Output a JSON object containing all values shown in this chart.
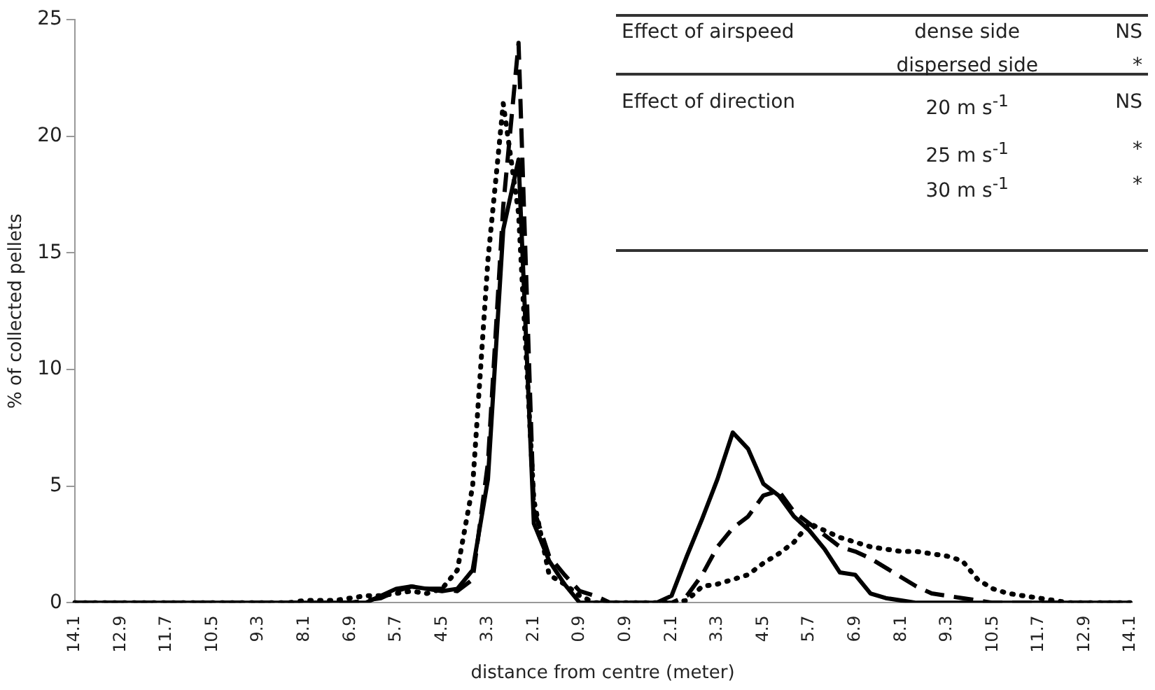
{
  "chart_data": {
    "type": "line",
    "xlabel": "distance from centre (meter)",
    "ylabel": "% of collected pellets",
    "categories": [
      "14.1",
      null,
      null,
      "12.9",
      null,
      null,
      "11.7",
      null,
      null,
      "10.5",
      null,
      null,
      "9.3",
      null,
      null,
      "8.1",
      null,
      null,
      "6.9",
      null,
      null,
      "5.7",
      null,
      null,
      "4.5",
      null,
      null,
      "3.3",
      null,
      null,
      "2.1",
      null,
      null,
      "0.9",
      null,
      null,
      "0.9",
      null,
      null,
      "2.1",
      null,
      null,
      "3.3",
      null,
      null,
      "4.5",
      null,
      null,
      "5.7",
      null,
      null,
      "6.9",
      null,
      null,
      "8.1",
      null,
      null,
      "9.3",
      null,
      null,
      "10.5",
      null,
      null,
      "11.7",
      null,
      null,
      "12.9",
      null,
      null,
      "14.1"
    ],
    "ylim": [
      0,
      25
    ],
    "yticks": [
      0,
      5,
      10,
      15,
      20,
      25
    ],
    "grid": false,
    "legend": false,
    "marker": "none",
    "series": [
      {
        "color": "#000000",
        "line_style": "solid",
        "values": [
          0,
          0,
          0,
          0,
          0,
          0,
          0,
          0,
          0,
          0,
          0,
          0,
          0,
          0,
          0,
          0,
          0,
          0,
          0,
          0,
          0.3,
          0.6,
          0.7,
          0.6,
          0.5,
          0.6,
          1.4,
          5.3,
          16,
          19,
          3.4,
          1.8,
          0.8,
          0,
          0,
          0,
          0,
          0,
          0,
          0.3,
          2,
          3.6,
          5.3,
          7.3,
          6.6,
          5.1,
          4.6,
          3.7,
          3.1,
          2.3,
          1.3,
          1.2,
          0.4,
          0.2,
          0.1,
          0,
          0,
          0,
          0,
          0,
          0,
          0,
          0,
          0,
          0,
          0,
          0,
          0,
          0,
          0
        ]
      },
      {
        "color": "#000000",
        "line_style": "dashed",
        "values": [
          0,
          0,
          0,
          0,
          0,
          0,
          0,
          0,
          0,
          0,
          0,
          0,
          0,
          0,
          0,
          0,
          0,
          0,
          0,
          0.1,
          0.2,
          0.5,
          0.7,
          0.6,
          0.6,
          0.5,
          1,
          6,
          17,
          24,
          4,
          2,
          1.2,
          0.5,
          0.3,
          0,
          0,
          0,
          0,
          0,
          0.3,
          1.2,
          2.4,
          3.2,
          3.7,
          4.6,
          4.8,
          3.9,
          3.4,
          2.9,
          2.4,
          2.2,
          1.9,
          1.5,
          1.1,
          0.7,
          0.4,
          0.3,
          0.2,
          0.1,
          0,
          0,
          0,
          0,
          0,
          0,
          0,
          0,
          0,
          0
        ]
      },
      {
        "color": "#000000",
        "line_style": "dotted",
        "values": [
          0,
          0,
          0,
          0,
          0,
          0,
          0,
          0,
          0,
          0,
          0,
          0,
          0,
          0,
          0,
          0.1,
          0.1,
          0.1,
          0.2,
          0.3,
          0.3,
          0.4,
          0.5,
          0.4,
          0.6,
          1.4,
          5,
          14.7,
          21.4,
          16.7,
          4.4,
          1.2,
          0.8,
          0.3,
          0,
          0,
          0,
          0,
          0,
          0,
          0.1,
          0.7,
          0.8,
          1,
          1.2,
          1.7,
          2.1,
          2.6,
          3.4,
          3.1,
          2.8,
          2.6,
          2.4,
          2.3,
          2.2,
          2.2,
          2.1,
          2,
          1.8,
          1,
          0.6,
          0.4,
          0.3,
          0.2,
          0.1,
          0,
          0,
          0,
          0,
          0
        ]
      }
    ],
    "annotations": [
      "Effect of airspeed",
      "dense side",
      "NS",
      "dispersed side",
      "*",
      "Effect of direction",
      "20 m s$^{-1}$",
      "NS",
      "25 m s$^{-1}$",
      "*",
      "30 m s$^{-1}$",
      "*"
    ]
  }
}
